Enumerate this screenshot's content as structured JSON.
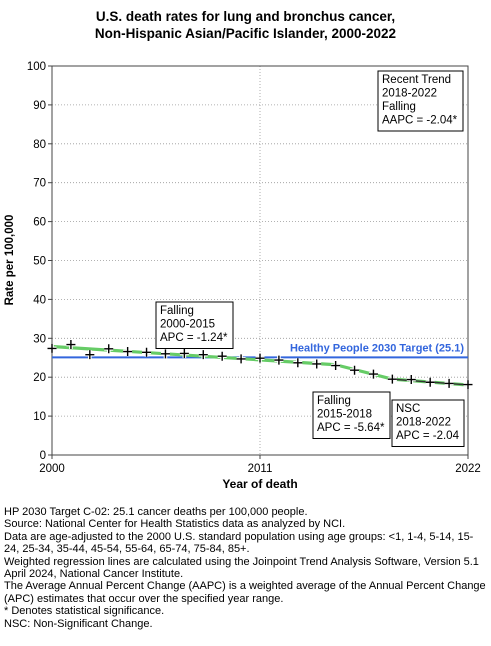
{
  "chart_data": {
    "type": "line",
    "title": "U.S. death rates for lung and bronchus cancer,",
    "subtitle": "Non-Hispanic Asian/Pacific Islander,  2000-2022",
    "xlabel": "Year of death",
    "ylabel": "Rate per 100,000",
    "xlim": [
      2000,
      2022
    ],
    "ylim": [
      0,
      100
    ],
    "x_ticks": [
      "2000",
      "2011",
      "2022"
    ],
    "y_ticks": [
      "0",
      "10",
      "20",
      "30",
      "40",
      "50",
      "60",
      "70",
      "80",
      "90",
      "100"
    ],
    "grid": true,
    "colors": {
      "observed": "#000000",
      "trend": "#66cc66",
      "target": "#3366dd"
    },
    "observed": {
      "x": [
        2000,
        2001,
        2002,
        2003,
        2004,
        2005,
        2006,
        2007,
        2008,
        2009,
        2010,
        2011,
        2012,
        2013,
        2014,
        2015,
        2016,
        2017,
        2018,
        2019,
        2020,
        2021,
        2022
      ],
      "y": [
        27.4,
        28.4,
        25.8,
        27.3,
        26.6,
        26.4,
        26.0,
        26.1,
        25.8,
        25.4,
        24.7,
        24.9,
        24.4,
        23.7,
        23.4,
        23.0,
        21.8,
        20.8,
        19.5,
        19.4,
        18.7,
        18.4,
        18.1
      ]
    },
    "trend_segments": [
      {
        "x": [
          2000,
          2015
        ],
        "y": [
          27.9,
          23.2
        ]
      },
      {
        "x": [
          2015,
          2018
        ],
        "y": [
          23.2,
          19.5
        ]
      }
    ],
    "nsc_segment": {
      "x": [
        2018,
        2022
      ],
      "y": [
        19.5,
        18.0
      ]
    },
    "target": {
      "value": 25.1,
      "label": "Healthy People 2030 Target (25.1)"
    },
    "annotations": [
      {
        "lines": [
          "Recent Trend",
          "2018-2022",
          "Falling",
          "AAPC = -2.04*"
        ]
      },
      {
        "lines": [
          "Falling",
          "2000-2015",
          "APC = -1.24*"
        ]
      },
      {
        "lines": [
          "Falling",
          "2015-2018",
          "APC = -5.64*"
        ]
      },
      {
        "lines": [
          "NSC",
          "2018-2022",
          "APC = -2.04"
        ]
      }
    ]
  },
  "notes": [
    "HP 2030 Target C-02: 25.1 cancer deaths per 100,000 people.",
    "Source: National Center for Health Statistics data as analyzed by NCI.",
    "Data are age-adjusted to the 2000 U.S. standard population using age groups: <1, 1-4, 5-14, 15-24, 25-34, 35-44, 45-54, 55-64, 65-74, 75-84, 85+.",
    "Weighted regression lines are calculated using the Joinpoint Trend Analysis Software, Version 5.1 April 2024, National Cancer Institute.",
    "The Average Annual Percent Change (AAPC) is a weighted average of the Annual Percent Change (APC) estimates that occur over the specified year range.",
    "* Denotes statistical significance.",
    "NSC: Non-Significant Change."
  ]
}
